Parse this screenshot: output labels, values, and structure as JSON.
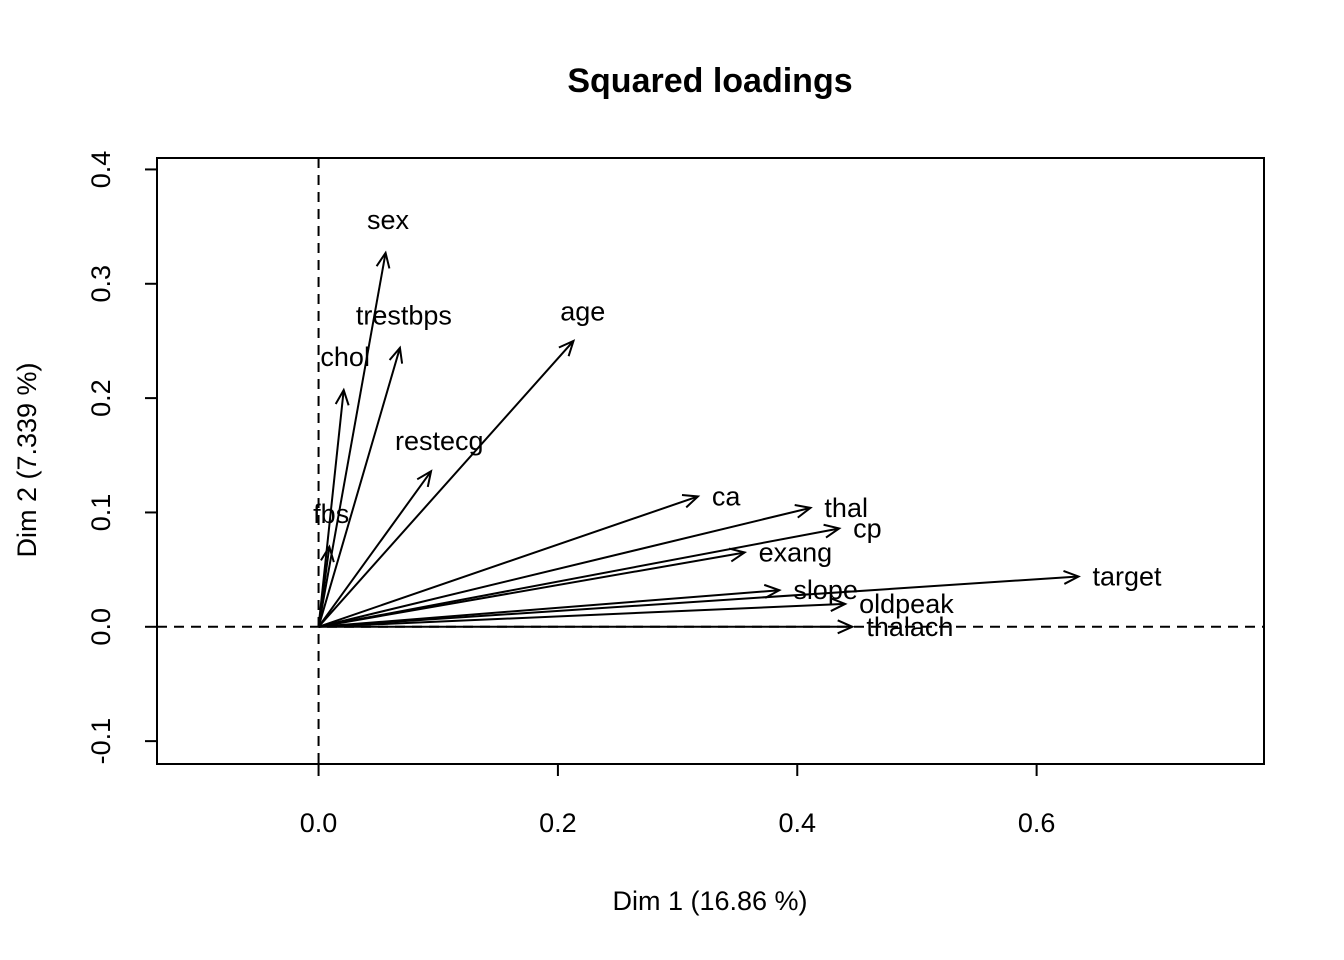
{
  "chart_data": {
    "type": "scatter",
    "title": "Squared loadings",
    "xlabel": "Dim 1 (16.86 %)",
    "ylabel": "Dim 2 (7.339 %)",
    "xlim": [
      -0.135,
      0.79
    ],
    "ylim": [
      -0.12,
      0.41
    ],
    "x_ticks": [
      "0.0",
      "0.2",
      "0.4",
      "0.6"
    ],
    "y_ticks": [
      "-0.1",
      "0.0",
      "0.1",
      "0.2",
      "0.3",
      "0.4"
    ],
    "reference_lines": {
      "x": 0,
      "y": 0,
      "style": "dashed"
    },
    "grid": false,
    "vectors": [
      {
        "name": "age",
        "x": 0.213,
        "y": 0.25
      },
      {
        "name": "sex",
        "x": 0.056,
        "y": 0.327
      },
      {
        "name": "cp",
        "x": 0.435,
        "y": 0.086
      },
      {
        "name": "trestbps",
        "x": 0.068,
        "y": 0.244
      },
      {
        "name": "chol",
        "x": 0.021,
        "y": 0.207
      },
      {
        "name": "fbs",
        "x": 0.009,
        "y": 0.07
      },
      {
        "name": "restecg",
        "x": 0.094,
        "y": 0.136
      },
      {
        "name": "thalach",
        "x": 0.446,
        "y": 0.0
      },
      {
        "name": "exang",
        "x": 0.356,
        "y": 0.065
      },
      {
        "name": "oldpeak",
        "x": 0.44,
        "y": 0.02
      },
      {
        "name": "slope",
        "x": 0.385,
        "y": 0.032
      },
      {
        "name": "ca",
        "x": 0.317,
        "y": 0.114
      },
      {
        "name": "thal",
        "x": 0.411,
        "y": 0.104
      },
      {
        "name": "target",
        "x": 0.635,
        "y": 0.044
      }
    ]
  }
}
